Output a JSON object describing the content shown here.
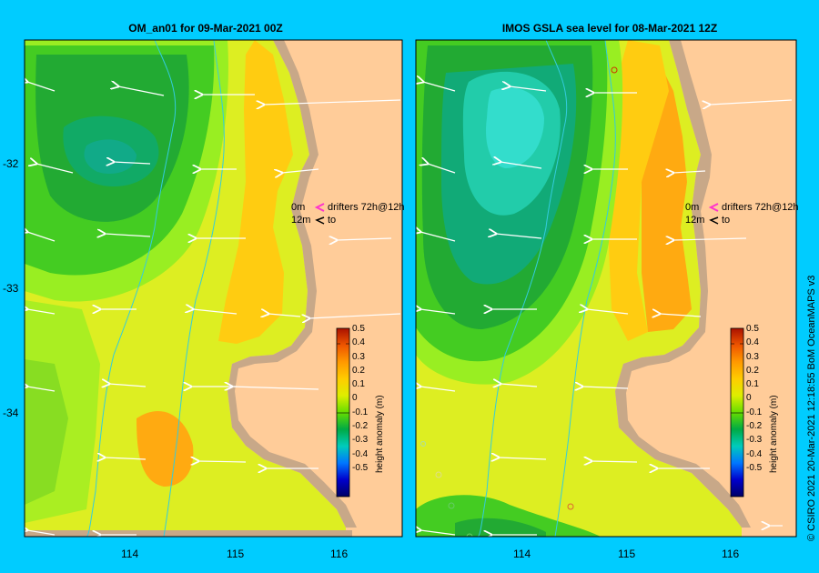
{
  "left_panel": {
    "title": "OM_an01  for 09-Mar-2021 00Z",
    "legend_line1": "drifters 72h@12h",
    "legend_line2": "to",
    "depth1": "0m",
    "depth2": "12m",
    "cb_label": "height anomaly (m)"
  },
  "right_panel": {
    "title": "IMOS  GSLA sea level  for 08-Mar-2021 12Z",
    "legend_line1": "drifters 72h@12h",
    "legend_line2": "to",
    "depth1": "0m",
    "depth2": "12m",
    "cb_label": "height anomaly (m)"
  },
  "y_ticks": [
    "-32",
    "-33",
    "-34"
  ],
  "x_ticks": [
    "114",
    "115",
    "116"
  ],
  "colorbar_ticks": [
    "0.5",
    "0.4",
    "0.3",
    "0.2",
    "0.1",
    "0",
    "-0.1",
    "-0.2",
    "-0.3",
    "-0.4",
    "-0.5"
  ],
  "side_text": "© CSIRO 2021   20-Mar-2021 12:18:55 BoM OceanMAPS v3",
  "colors": {
    "background": "#00ccff",
    "land": "#ffcc99",
    "shelf": "#c8a888",
    "rivers": "#33ccdd"
  }
}
